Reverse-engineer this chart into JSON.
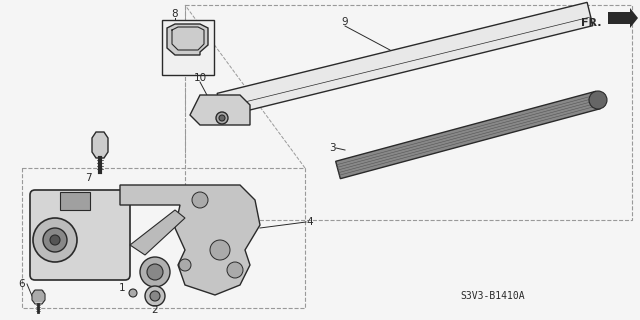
{
  "bg_color": "#f5f5f5",
  "line_color": "#2a2a2a",
  "thin_line": "#444444",
  "gray_fill": "#c8c8c8",
  "dark_fill": "#888888",
  "dashed_color": "#999999",
  "part_code": "S3V3-B1410A",
  "fr_label": "FR.",
  "figsize": [
    6.4,
    3.2
  ],
  "dpi": 100
}
